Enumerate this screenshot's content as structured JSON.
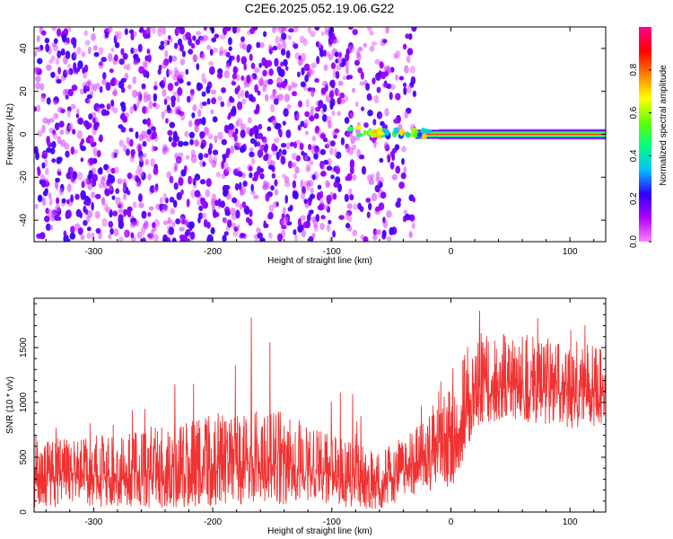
{
  "title": "C2E6.2025.052.19.06.G22",
  "chart_data": [
    {
      "type": "heatmap",
      "xlabel": "Height of straight line (km)",
      "ylabel": "Frequency (Hz)",
      "xlim": [
        -350,
        130
      ],
      "ylim": [
        -50,
        50
      ],
      "xticks": [
        -300,
        -200,
        -100,
        0,
        100
      ],
      "yticks": [
        -40,
        -20,
        0,
        20,
        40
      ],
      "colorbar": {
        "label": "Normalized spectral amplitude",
        "range": [
          0,
          1
        ],
        "ticks": [
          0.0,
          0.2,
          0.4,
          0.6,
          0.8
        ],
        "colors": [
          "#ff80ff",
          "#b000ff",
          "#3000ff",
          "#00c0ff",
          "#00ff80",
          "#60ff00",
          "#ffff00",
          "#ff8000",
          "#ff0000",
          "#ff0090"
        ]
      },
      "noise_region": {
        "x": [
          -350,
          -50
        ],
        "amplitude": 0.1
      },
      "signal_line": {
        "frequency": 0,
        "x": [
          -85,
          130
        ],
        "amplitude": 0.85
      }
    },
    {
      "type": "line",
      "xlabel": "Height of straight line (km)",
      "ylabel": "SNR (10 * v/v)",
      "xlim": [
        -350,
        130
      ],
      "ylim": [
        0,
        1950
      ],
      "xticks": [
        -300,
        -200,
        -100,
        0,
        100
      ],
      "yticks": [
        0,
        500,
        1000,
        1500
      ],
      "color": "#f03232",
      "envelope": [
        {
          "x": -350,
          "low": 40,
          "high": 650,
          "peak": 800
        },
        {
          "x": -300,
          "low": 40,
          "high": 700,
          "peak": 900
        },
        {
          "x": -250,
          "low": 30,
          "high": 750,
          "peak": 950
        },
        {
          "x": -200,
          "low": 60,
          "high": 900,
          "peak": 1850
        },
        {
          "x": -150,
          "low": 60,
          "high": 950,
          "peak": 1800
        },
        {
          "x": -100,
          "low": 50,
          "high": 700,
          "peak": 1350
        },
        {
          "x": -60,
          "low": 20,
          "high": 550,
          "peak": 750
        },
        {
          "x": -20,
          "low": 200,
          "high": 850,
          "peak": 1050
        },
        {
          "x": 0,
          "low": 150,
          "high": 1150,
          "peak": 1400
        },
        {
          "x": 20,
          "low": 750,
          "high": 1650,
          "peak": 1900
        },
        {
          "x": 50,
          "low": 850,
          "high": 1650,
          "peak": 1850
        },
        {
          "x": 100,
          "low": 750,
          "high": 1550,
          "peak": 1750
        },
        {
          "x": 130,
          "low": 800,
          "high": 1500,
          "peak": 1800
        }
      ]
    }
  ]
}
